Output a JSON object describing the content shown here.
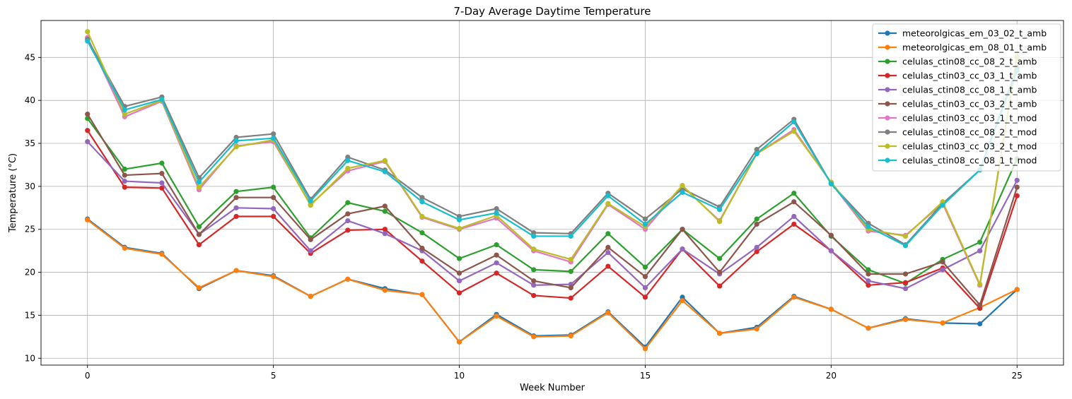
{
  "chart_data": {
    "type": "line",
    "title": "7-Day Average Daytime Temperature",
    "xlabel": "Week Number",
    "ylabel": "Temperature (°C)",
    "xlim": [
      -1.25,
      26.25
    ],
    "ylim": [
      9.2,
      49.3
    ],
    "xticks": [
      0,
      5,
      10,
      15,
      20,
      25
    ],
    "yticks": [
      10,
      15,
      20,
      25,
      30,
      35,
      40,
      45
    ],
    "grid": true,
    "legend_position": "top-right",
    "x": [
      0,
      1,
      2,
      3,
      4,
      5,
      6,
      7,
      8,
      9,
      10,
      11,
      12,
      13,
      14,
      15,
      16,
      17,
      18,
      19,
      20,
      21,
      22,
      23,
      24,
      25
    ],
    "series": [
      {
        "name": "meteorolgicas_em_03_02_t_amb",
        "color": "#1f77b4",
        "values": [
          26.2,
          22.9,
          22.2,
          18.1,
          20.2,
          19.6,
          17.2,
          19.2,
          18.1,
          17.4,
          11.9,
          15.1,
          12.6,
          12.7,
          15.4,
          11.3,
          17.1,
          12.9,
          13.6,
          17.2,
          15.7,
          13.5,
          14.6,
          14.1,
          14.0,
          18.0
        ]
      },
      {
        "name": "meteorolgicas_em_08_01_t_amb",
        "color": "#ff7f0e",
        "values": [
          26.1,
          22.8,
          22.1,
          18.2,
          20.2,
          19.5,
          17.2,
          19.2,
          17.9,
          17.4,
          11.9,
          14.9,
          12.5,
          12.6,
          15.3,
          11.1,
          16.7,
          12.9,
          13.4,
          17.1,
          15.7,
          13.5,
          14.5,
          14.1,
          15.9,
          18.0
        ]
      },
      {
        "name": "celulas_ctin08_cc_08_2_t_amb",
        "color": "#2ca02c",
        "values": [
          37.9,
          32.0,
          32.7,
          25.3,
          29.4,
          29.9,
          24.0,
          28.1,
          27.1,
          24.6,
          21.6,
          23.2,
          20.3,
          20.1,
          24.5,
          20.6,
          25.0,
          21.6,
          26.2,
          29.2,
          24.2,
          20.3,
          18.7,
          21.5,
          23.5,
          33.2
        ]
      },
      {
        "name": "celulas_ctin03_cc_03_1_t_amb",
        "color": "#d62728",
        "values": [
          36.5,
          29.9,
          29.8,
          23.2,
          26.5,
          26.5,
          22.2,
          24.9,
          25.0,
          21.3,
          17.6,
          19.9,
          17.3,
          17.0,
          20.7,
          17.1,
          22.7,
          18.4,
          22.4,
          25.6,
          22.5,
          18.5,
          18.8,
          20.5,
          15.8,
          28.9
        ]
      },
      {
        "name": "celulas_ctin08_cc_08_1_t_amb",
        "color": "#9467bd",
        "values": [
          35.2,
          30.6,
          30.4,
          24.4,
          27.5,
          27.4,
          22.5,
          26.0,
          24.5,
          22.5,
          19.0,
          21.1,
          18.5,
          18.6,
          22.3,
          18.2,
          22.7,
          19.8,
          22.9,
          26.5,
          22.5,
          19.0,
          18.1,
          20.3,
          22.5,
          30.7
        ]
      },
      {
        "name": "celulas_ctin03_cc_03_2_t_amb",
        "color": "#8c564b",
        "values": [
          38.4,
          31.3,
          31.5,
          24.4,
          28.7,
          28.7,
          23.8,
          26.8,
          27.7,
          22.8,
          19.9,
          22.0,
          19.0,
          18.2,
          22.9,
          19.5,
          25.0,
          20.0,
          25.6,
          28.2,
          24.3,
          19.8,
          19.8,
          21.2,
          16.2,
          29.9
        ]
      },
      {
        "name": "celulas_ctin03_cc_03_1_t_mod",
        "color": "#e377c2",
        "values": [
          47.3,
          38.1,
          39.9,
          29.6,
          34.7,
          35.2,
          27.9,
          31.8,
          32.9,
          26.4,
          25.0,
          26.3,
          22.5,
          21.2,
          27.9,
          25.0,
          30.0,
          26.0,
          33.8,
          36.6,
          30.4,
          24.8,
          24.3,
          28.0,
          18.5,
          45.0
        ]
      },
      {
        "name": "celulas_ctin08_cc_08_2_t_mod",
        "color": "#7f7f7f",
        "values": [
          47.1,
          39.3,
          40.4,
          31.0,
          35.7,
          36.1,
          28.5,
          33.4,
          31.9,
          28.7,
          26.5,
          27.4,
          24.6,
          24.5,
          29.2,
          26.2,
          29.7,
          27.6,
          34.3,
          37.8,
          30.3,
          25.7,
          23.2,
          28.0,
          31.9,
          43.8
        ]
      },
      {
        "name": "celulas_ctin03_cc_03_2_t_mod",
        "color": "#bcbd22",
        "values": [
          48.0,
          38.4,
          40.0,
          29.9,
          34.6,
          35.4,
          27.8,
          32.1,
          33.0,
          26.5,
          25.1,
          26.6,
          22.7,
          21.5,
          28.0,
          25.3,
          30.1,
          25.9,
          33.8,
          36.4,
          30.5,
          25.0,
          24.2,
          28.2,
          18.6,
          45.1
        ]
      },
      {
        "name": "celulas_ctin08_cc_08_1_t_mod",
        "color": "#17becf",
        "values": [
          46.9,
          38.9,
          40.1,
          30.5,
          35.3,
          35.6,
          28.3,
          33.0,
          31.7,
          28.2,
          26.1,
          26.9,
          24.2,
          24.2,
          28.9,
          25.6,
          29.3,
          27.3,
          33.8,
          37.5,
          30.3,
          25.3,
          23.1,
          27.8,
          31.9,
          43.5
        ]
      }
    ]
  }
}
